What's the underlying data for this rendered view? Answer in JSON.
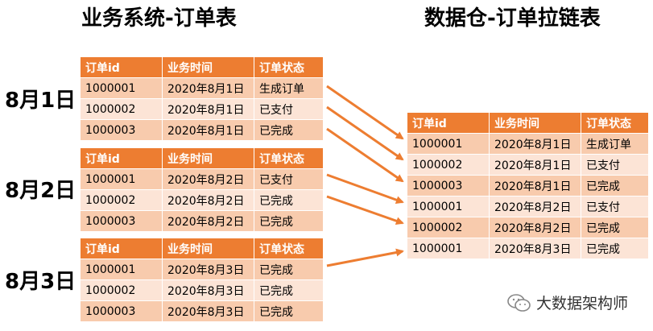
{
  "titles": {
    "left": "业务系统-订单表",
    "right": "数据仓-订单拉链表"
  },
  "columns": [
    "订单id",
    "业务时间",
    "订单状态"
  ],
  "days": [
    {
      "label": "8月1日",
      "rows": [
        [
          "1000001",
          "2020年8月1日",
          "生成订单"
        ],
        [
          "1000002",
          "2020年8月1日",
          "已支付"
        ],
        [
          "1000003",
          "2020年8月1日",
          "已完成"
        ]
      ]
    },
    {
      "label": "8月2日",
      "rows": [
        [
          "1000001",
          "2020年8月2日",
          "已支付"
        ],
        [
          "1000002",
          "2020年8月2日",
          "已完成"
        ],
        [
          "1000003",
          "2020年8月2日",
          "已完成"
        ]
      ]
    },
    {
      "label": "8月3日",
      "rows": [
        [
          "1000001",
          "2020年8月3日",
          "已完成"
        ],
        [
          "1000002",
          "2020年8月3日",
          "已完成"
        ],
        [
          "1000003",
          "2020年8月3日",
          "已完成"
        ]
      ]
    }
  ],
  "warehouse": {
    "rows": [
      [
        "1000001",
        "2020年8月1日",
        "生成订单"
      ],
      [
        "1000002",
        "2020年8月1日",
        "已支付"
      ],
      [
        "1000003",
        "2020年8月1日",
        "已完成"
      ],
      [
        "1000001",
        "2020年8月2日",
        "已支付"
      ],
      [
        "1000002",
        "2020年8月2日",
        "已完成"
      ],
      [
        "1000001",
        "2020年8月3日",
        "已完成"
      ]
    ]
  },
  "watermark": "大数据架构师",
  "colors": {
    "header": "#ED7D31",
    "row_odd": "#F8CBAD",
    "row_even": "#FCE4D6",
    "arrow": "#ED7D31"
  }
}
